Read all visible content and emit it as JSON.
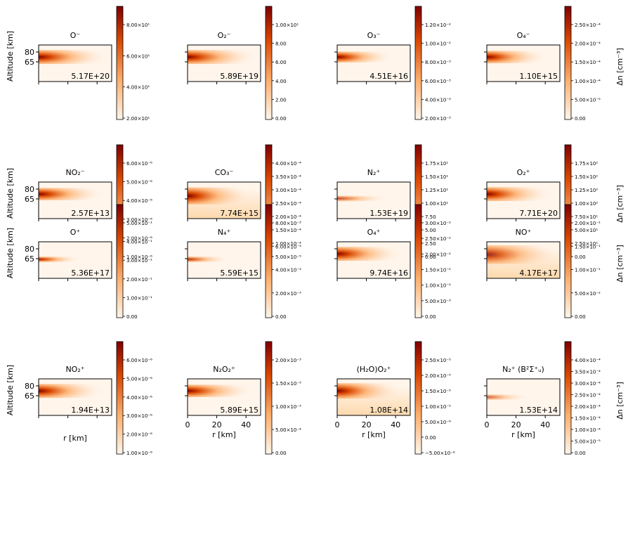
{
  "colors": {
    "low": "#fff5eb",
    "mid": "#fdae6b",
    "high": "#d94801",
    "top": "#7f0000",
    "frame": "#000000"
  },
  "labels": {
    "ylabel": "Altitude [km]",
    "xlabel": "r [km]",
    "cbar_label": "Δn [cm⁻³]"
  },
  "chart_data": [
    {
      "type": "heatmap",
      "title": "O⁻",
      "total": "5.17E+20",
      "xticks": [
        "",
        "",
        ""
      ],
      "yticks": [
        "80",
        "65"
      ],
      "cbar_ticks": [
        "8.00×10¹",
        "6.00×10¹",
        "4.00×10¹",
        "2.00×10¹"
      ],
      "plume": {
        "y": 0.33,
        "spread": 0.9,
        "intensity": 1.0,
        "length": 0.75
      },
      "background": 0.0
    },
    {
      "type": "heatmap",
      "title": "O₂⁻",
      "total": "5.89E+19",
      "xticks": [
        "",
        "",
        ""
      ],
      "yticks": [
        "",
        ""
      ],
      "cbar_ticks": [
        "1.00×10¹",
        "8.00",
        "6.00",
        "4.00",
        "2.00",
        "0.00"
      ],
      "plume": {
        "y": 0.33,
        "spread": 0.9,
        "intensity": 1.0,
        "length": 0.75
      },
      "background": 0.0
    },
    {
      "type": "heatmap",
      "title": "O₃⁻",
      "total": "4.51E+16",
      "xticks": [
        "",
        "",
        ""
      ],
      "yticks": [
        "",
        ""
      ],
      "cbar_ticks": [
        "1.20×10⁻²",
        "1.00×10⁻²",
        "8.00×10⁻³",
        "6.00×10⁻³",
        "4.00×10⁻³",
        "2.00×10⁻³"
      ],
      "plume": {
        "y": 0.33,
        "spread": 0.7,
        "intensity": 1.0,
        "length": 0.6
      },
      "background": 0.0
    },
    {
      "type": "heatmap",
      "title": "O₄⁻",
      "total": "1.10E+15",
      "xticks": [
        "",
        "",
        ""
      ],
      "yticks": [
        "",
        ""
      ],
      "cbar_ticks": [
        "2.50×10⁻⁴",
        "2.00×10⁻⁴",
        "1.50×10⁻⁴",
        "1.00×10⁻⁴",
        "5.00×10⁻⁵",
        "0.00"
      ],
      "plume": {
        "y": 0.33,
        "spread": 0.8,
        "intensity": 1.0,
        "length": 0.65
      },
      "background": 0.0
    },
    {
      "type": "heatmap",
      "title": "NO₂⁻",
      "total": "2.57E+13",
      "xticks": [
        "",
        "",
        ""
      ],
      "yticks": [
        "80",
        "65"
      ],
      "cbar_ticks": [
        "6.00×10⁻⁶",
        "5.00×10⁻⁶",
        "4.00×10⁻⁶",
        "3.00×10⁻⁶",
        "2.00×10⁻⁶",
        "1.00×10⁻⁶"
      ],
      "plume": {
        "y": 0.33,
        "spread": 0.8,
        "intensity": 1.0,
        "length": 0.7
      },
      "background": 0.0
    },
    {
      "type": "heatmap",
      "title": "CO₃⁻",
      "total": "7.74E+15",
      "xticks": [
        "",
        "",
        ""
      ],
      "yticks": [
        "",
        ""
      ],
      "cbar_ticks": [
        "4.00×10⁻⁴",
        "3.50×10⁻⁴",
        "3.00×10⁻⁴",
        "2.50×10⁻⁴",
        "2.00×10⁻⁴",
        "1.50×10⁻⁴",
        "1.00×10⁻⁴",
        "5.00×10⁻⁵"
      ],
      "plume": {
        "y": 0.38,
        "spread": 1.1,
        "intensity": 1.0,
        "length": 0.7
      },
      "background": 0.25
    },
    {
      "type": "heatmap",
      "title": "N₂⁺",
      "total": "1.53E+19",
      "xticks": [
        "",
        "",
        ""
      ],
      "yticks": [
        "",
        ""
      ],
      "cbar_ticks": [
        "1.75×10¹",
        "1.50×10¹",
        "1.25×10¹",
        "1.00×10¹",
        "7.50",
        "5.00",
        "2.50",
        "0.00"
      ],
      "plume": {
        "y": 0.45,
        "spread": 0.35,
        "intensity": 0.7,
        "length": 0.55
      },
      "background": 0.0
    },
    {
      "type": "heatmap",
      "title": "O₂⁺",
      "total": "7.71E+20",
      "xticks": [
        "",
        "",
        ""
      ],
      "yticks": [
        "",
        ""
      ],
      "cbar_ticks": [
        "1.75×10²",
        "1.50×10²",
        "1.25×10²",
        "1.00×10²",
        "7.50×10¹",
        "5.00×10¹",
        "2.50×10¹",
        "0.00"
      ],
      "plume": {
        "y": 0.33,
        "spread": 0.9,
        "intensity": 1.0,
        "length": 0.7
      },
      "background": 0.0
    },
    {
      "type": "heatmap",
      "title": "O⁺",
      "total": "5.36E+17",
      "xticks": [
        "",
        "",
        ""
      ],
      "yticks": [
        "80",
        "65"
      ],
      "cbar_ticks": [
        "5.00×10⁻¹",
        "4.00×10⁻¹",
        "3.00×10⁻¹",
        "2.00×10⁻¹",
        "1.00×10⁻¹",
        "0.00"
      ],
      "plume": {
        "y": 0.48,
        "spread": 0.35,
        "intensity": 0.9,
        "length": 0.45
      },
      "background": 0.0
    },
    {
      "type": "heatmap",
      "title": "N₄⁺",
      "total": "5.59E+15",
      "xticks": [
        "",
        "",
        ""
      ],
      "yticks": [
        "",
        ""
      ],
      "cbar_ticks": [
        "8.00×10⁻³",
        "6.00×10⁻³",
        "4.00×10⁻³",
        "2.00×10⁻³",
        "0.00"
      ],
      "plume": {
        "y": 0.48,
        "spread": 0.35,
        "intensity": 0.8,
        "length": 0.45
      },
      "background": 0.0
    },
    {
      "type": "heatmap",
      "title": "O₄⁺",
      "total": "9.74E+16",
      "xticks": [
        "",
        "",
        ""
      ],
      "yticks": [
        "",
        ""
      ],
      "cbar_ticks": [
        "3.00×10⁻²",
        "2.50×10⁻²",
        "2.00×10⁻²",
        "1.50×10⁻²",
        "1.00×10⁻²",
        "5.00×10⁻³",
        "0.00"
      ],
      "plume": {
        "y": 0.33,
        "spread": 0.9,
        "intensity": 1.0,
        "length": 0.7
      },
      "background": 0.0
    },
    {
      "type": "heatmap",
      "title": "NO⁺",
      "total": "4.17E+17",
      "xticks": [
        "",
        "",
        ""
      ],
      "yticks": [
        "",
        ""
      ],
      "cbar_ticks": [
        "2.00×10⁻¹",
        "1.50×10⁻¹",
        "1.00×10⁻¹",
        "5.00×10⁻²",
        "0.00"
      ],
      "plume": {
        "y": 0.35,
        "spread": 1.2,
        "intensity": 0.85,
        "length": 0.8
      },
      "background": 0.25
    },
    {
      "type": "heatmap",
      "title": "NO₂⁺",
      "total": "1.94E+13",
      "xticks": [
        "",
        "",
        ""
      ],
      "yticks": [
        "80",
        "65"
      ],
      "cbar_ticks": [
        "6.00×10⁻⁶",
        "5.00×10⁻⁶",
        "4.00×10⁻⁶",
        "3.00×10⁻⁶",
        "2.00×10⁻⁶",
        "1.00×10⁻⁶"
      ],
      "plume": {
        "y": 0.33,
        "spread": 0.9,
        "intensity": 1.0,
        "length": 0.7
      },
      "background": 0.0
    },
    {
      "type": "heatmap",
      "title": "N₂O₂⁺",
      "total": "5.89E+15",
      "xticks": [
        "0",
        "20",
        "40"
      ],
      "yticks": [
        "",
        ""
      ],
      "cbar_ticks": [
        "2.00×10⁻³",
        "1.50×10⁻³",
        "1.00×10⁻³",
        "5.00×10⁻⁴",
        "0.00"
      ],
      "plume": {
        "y": 0.33,
        "spread": 0.8,
        "intensity": 1.0,
        "length": 0.7
      },
      "background": 0.0
    },
    {
      "type": "heatmap",
      "title": "(H₂O)O₂⁺",
      "total": "1.08E+14",
      "xticks": [
        "0",
        "20",
        "40"
      ],
      "yticks": [
        "",
        ""
      ],
      "cbar_ticks": [
        "2.50×10⁻⁵",
        "2.00×10⁻⁵",
        "1.50×10⁻⁵",
        "1.00×10⁻⁵",
        "5.00×10⁻⁶",
        "0.00",
        "−5.00×10⁻⁶"
      ],
      "plume": {
        "y": 0.33,
        "spread": 1.0,
        "intensity": 1.0,
        "length": 0.7
      },
      "background": 0.32
    },
    {
      "type": "heatmap",
      "title": "N₂⁺ (B²Σ⁺ᵤ)",
      "total": "1.53E+14",
      "xticks": [
        "0",
        "20",
        "40"
      ],
      "yticks": [
        "",
        ""
      ],
      "cbar_ticks": [
        "4.00×10⁻⁴",
        "3.50×10⁻⁴",
        "3.00×10⁻⁴",
        "2.50×10⁻⁴",
        "2.00×10⁻⁴",
        "1.50×10⁻⁴",
        "1.00×10⁻⁴",
        "5.00×10⁻⁵",
        "0.00"
      ],
      "plume": {
        "y": 0.5,
        "spread": 0.35,
        "intensity": 0.6,
        "length": 0.45
      },
      "background": 0.0
    }
  ]
}
